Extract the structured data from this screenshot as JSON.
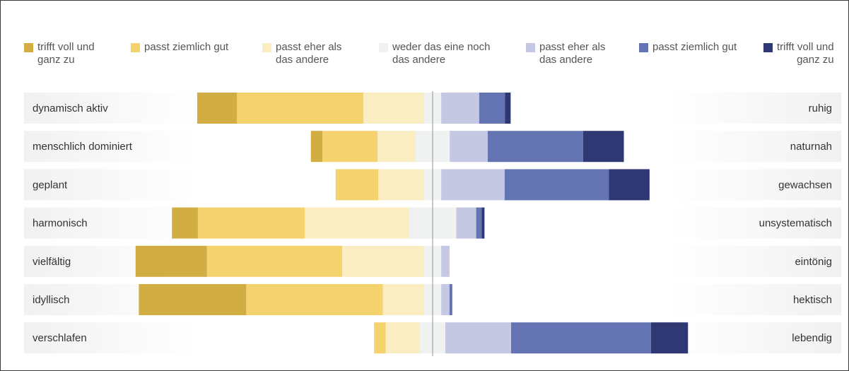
{
  "legend": [
    {
      "label": "trifft voll und\nganz zu",
      "color": "#d2ad43"
    },
    {
      "label": "passt ziemlich gut",
      "color": "#f4d36e"
    },
    {
      "label": "passt eher als\ndas andere",
      "color": "#faedc2"
    },
    {
      "label": "weder das eine noch\ndas andere",
      "color": "#f0f1f1"
    },
    {
      "label": "passt eher als\ndas andere",
      "color": "#c5c8e3"
    },
    {
      "label": "passt ziemlich gut",
      "color": "#6474b3"
    },
    {
      "label": "trifft voll und\nganz zu",
      "color": "#2f3873"
    }
  ],
  "chart_data": {
    "type": "bar",
    "orientation": "horizontal",
    "stacking": "diverging",
    "categories_left": [
      "dynamisch aktiv",
      "menschlich dominiert",
      "geplant",
      "harmonisch",
      "vielfältig",
      "idyllisch",
      "verschlafen"
    ],
    "categories_right": [
      "ruhig",
      "naturnah",
      "gewachsen",
      "unsystematisch",
      "eintönig",
      "hektisch",
      "lebendig"
    ],
    "series": [
      {
        "name": "trifft voll und ganz zu",
        "side": "left",
        "color": "#d2ad43",
        "values": [
          8.6,
          2.5,
          0,
          5.6,
          15.4,
          23.2,
          0
        ]
      },
      {
        "name": "passt ziemlich gut",
        "side": "left",
        "color": "#f4d36e",
        "values": [
          27.3,
          11.9,
          9.2,
          23.1,
          29.2,
          29.5,
          2.5
        ]
      },
      {
        "name": "passt eher als das andere",
        "side": "left",
        "color": "#faedc2",
        "values": [
          13.1,
          8.2,
          9.9,
          22.5,
          17.7,
          8.9,
          7.4
        ]
      },
      {
        "name": "weder das eine noch das andere",
        "side": "center",
        "color": "#f0f1f1",
        "values": [
          3.7,
          7.4,
          3.7,
          10.2,
          3.7,
          3.7,
          5.5
        ]
      },
      {
        "name": "passt eher als das andere",
        "side": "right",
        "color": "#c5c8e3",
        "values": [
          8.2,
          8.2,
          13.7,
          4.3,
          1.8,
          1.8,
          14.2
        ]
      },
      {
        "name": "passt ziemlich gut",
        "side": "right",
        "color": "#6474b3",
        "values": [
          5.6,
          20.6,
          22.5,
          1.2,
          0,
          0.6,
          30.2
        ]
      },
      {
        "name": "trifft voll und ganz zu",
        "side": "right",
        "color": "#2f3873",
        "values": [
          1.2,
          8.8,
          8.8,
          0.6,
          0,
          0,
          8.0
        ]
      }
    ]
  }
}
